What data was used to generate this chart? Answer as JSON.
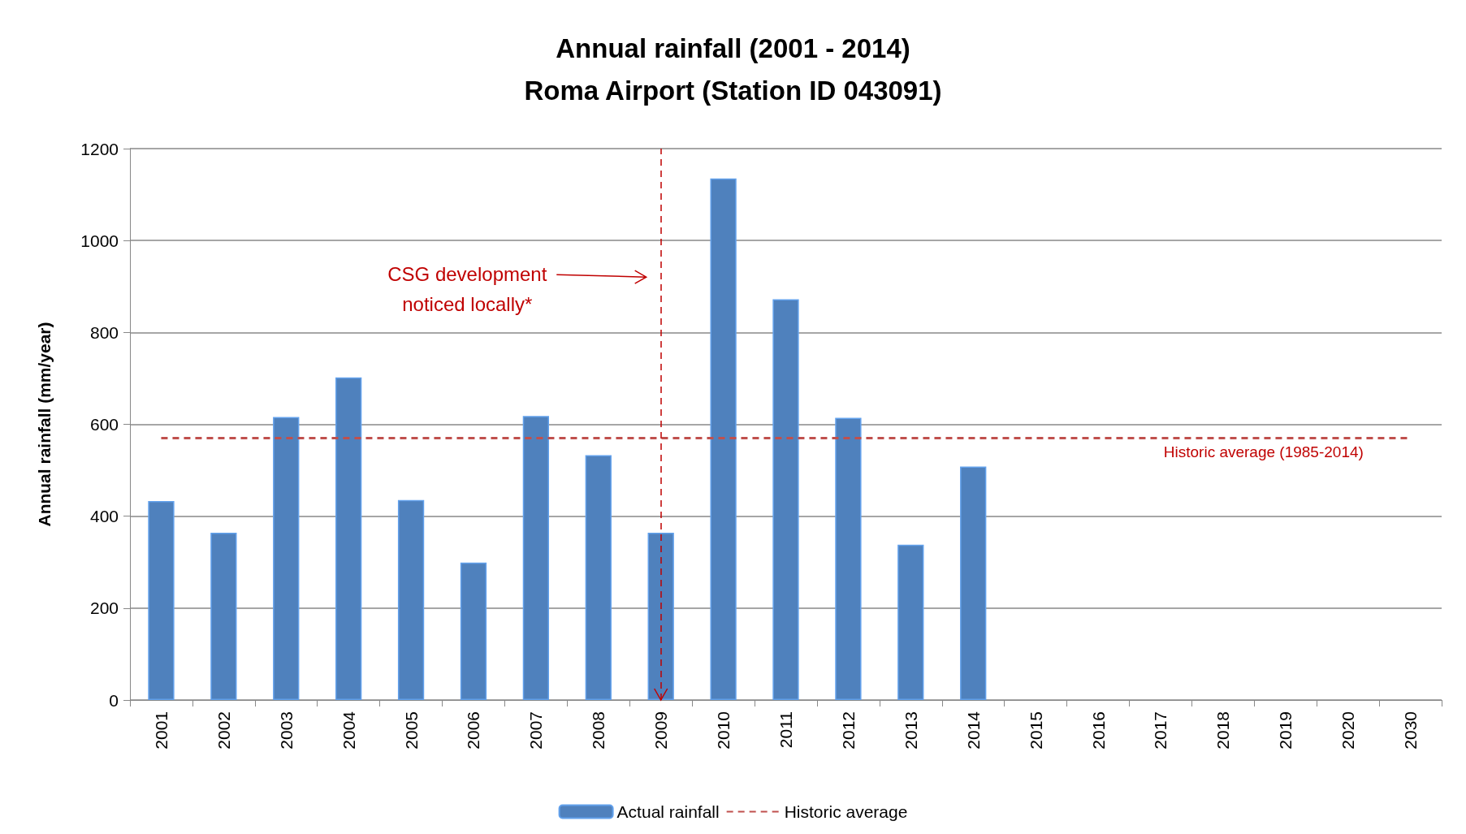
{
  "chart_data": {
    "type": "bar",
    "title": "Annual rainfall (2001 - 2014)\nRoma Airport (Station ID 043091)",
    "ylabel": "Annual rainfall (mm/year)",
    "categories": [
      "2001",
      "2002",
      "2003",
      "2004",
      "2005",
      "2006",
      "2007",
      "2008",
      "2009",
      "2010",
      "2011",
      "2012",
      "2013",
      "2014",
      "2015",
      "2016",
      "2017",
      "2018",
      "2019",
      "2020",
      "2030"
    ],
    "series": [
      {
        "name": "Actual rainfall",
        "color": "#4f81bd",
        "values": [
          433,
          364,
          616,
          702,
          435,
          299,
          618,
          533,
          364,
          1135,
          872,
          614,
          338,
          508,
          null,
          null,
          null,
          null,
          null,
          null,
          null
        ]
      },
      {
        "name": "Historic average",
        "type": "line",
        "color": "#c0504d",
        "line_style": "dashed",
        "values": [
          570,
          570,
          570,
          570,
          570,
          570,
          570,
          570,
          570,
          570,
          570,
          570,
          570,
          570,
          570,
          570,
          570,
          570,
          570,
          570,
          570
        ]
      }
    ],
    "ylim": [
      0,
      1200
    ],
    "yticks": [
      0,
      200,
      400,
      600,
      800,
      1000,
      1200
    ],
    "grid": "y",
    "legend": "bottom",
    "ref_lines": [
      {
        "axis": "x",
        "value": "2009",
        "label": null,
        "color": "#c00000",
        "line_style": "dashed"
      }
    ],
    "annotations": [
      "CSG development\nnoticed locally*",
      {
        "text": "Historic average (1985-2014)",
        "x": "2018",
        "y": 570
      }
    ]
  }
}
